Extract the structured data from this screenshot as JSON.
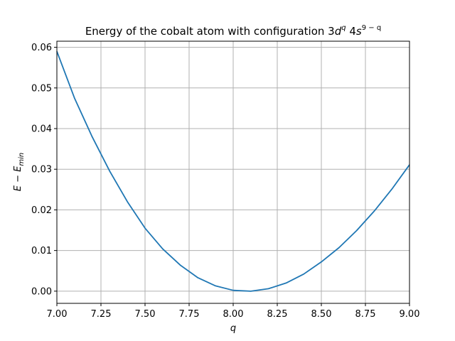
{
  "chart_data": {
    "type": "line",
    "title": {
      "prefix": "Energy of the cobalt atom with configuration 3",
      "d": "d",
      "d_sup": "q",
      "mid": " 4",
      "s": "s",
      "s_sup": "9 − q"
    },
    "xlabel": "q",
    "ylabel": {
      "lhs": "E",
      "op": " − ",
      "rhs": "E",
      "sub": "min"
    },
    "xlim": [
      7.0,
      9.0
    ],
    "ylim": [
      -0.003,
      0.0615
    ],
    "xticks": [
      7.0,
      7.25,
      7.5,
      7.75,
      8.0,
      8.25,
      8.5,
      8.75,
      9.0
    ],
    "xtick_labels": [
      "7.00",
      "7.25",
      "7.50",
      "7.75",
      "8.00",
      "8.25",
      "8.50",
      "8.75",
      "9.00"
    ],
    "yticks": [
      0.0,
      0.01,
      0.02,
      0.03,
      0.04,
      0.05,
      0.06
    ],
    "ytick_labels": [
      "0.00",
      "0.01",
      "0.02",
      "0.03",
      "0.04",
      "0.05",
      "0.06"
    ],
    "grid": true,
    "series": [
      {
        "color": "#1f77b4",
        "x": [
          7.0,
          7.1,
          7.2,
          7.3,
          7.4,
          7.5,
          7.6,
          7.7,
          7.8,
          7.9,
          8.0,
          8.1,
          8.2,
          8.3,
          8.4,
          8.5,
          8.6,
          8.7,
          8.8,
          8.9,
          9.0
        ],
        "y": [
          0.059,
          0.0475,
          0.038,
          0.0295,
          0.022,
          0.0155,
          0.0104,
          0.0064,
          0.0033,
          0.0013,
          0.0002,
          0.0,
          0.0006,
          0.002,
          0.0042,
          0.0072,
          0.0107,
          0.0149,
          0.0197,
          0.0251,
          0.0311
        ]
      }
    ]
  }
}
